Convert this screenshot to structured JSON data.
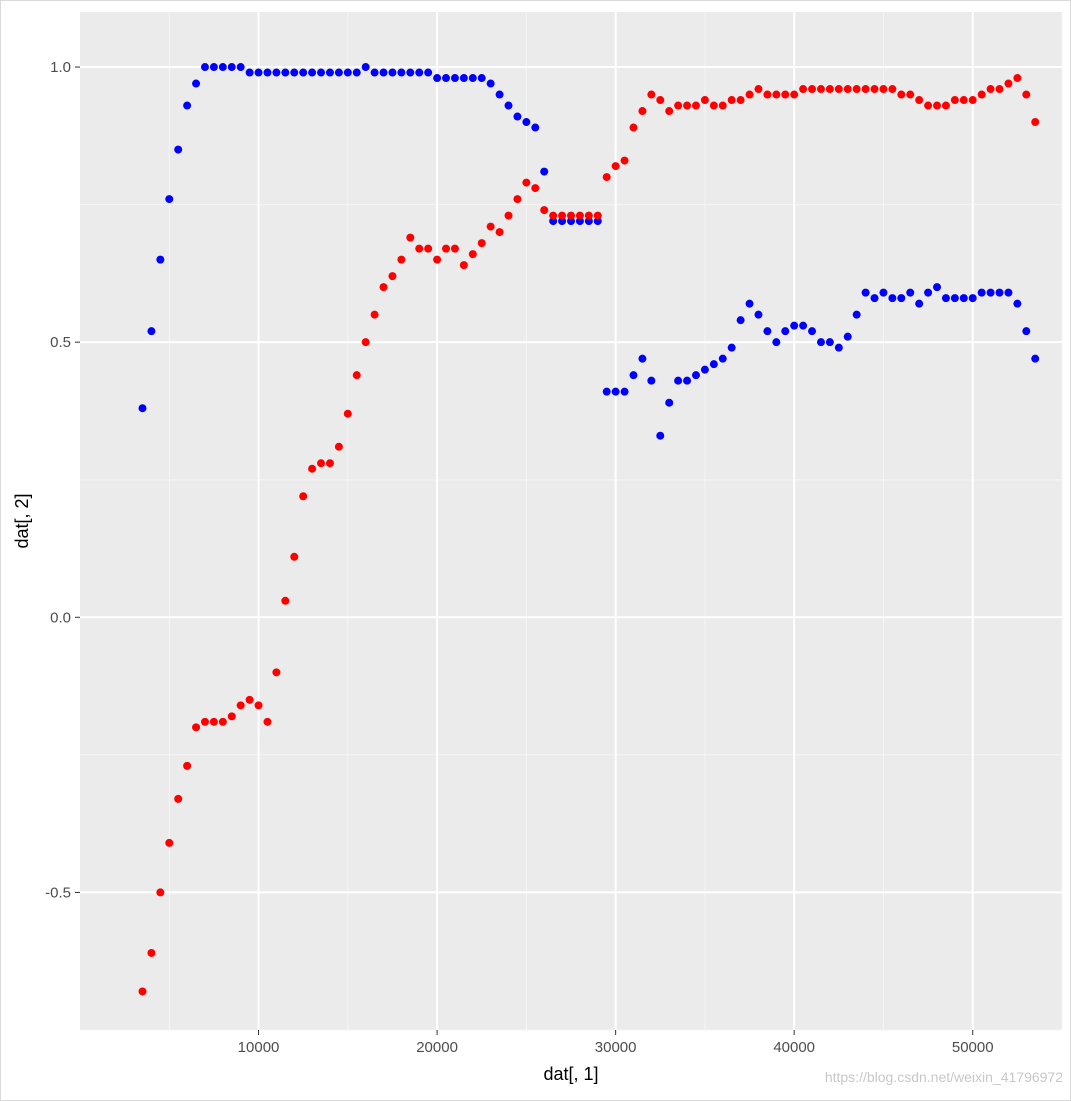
{
  "chart_data": {
    "type": "scatter",
    "xlabel": "dat[, 1]",
    "ylabel": "dat[, 2]",
    "xlim": [
      0,
      55000
    ],
    "ylim": [
      -0.75,
      1.1
    ],
    "x_ticks": [
      10000,
      20000,
      30000,
      40000,
      50000
    ],
    "x_tick_labels": [
      "10000",
      "20000",
      "30000",
      "40000",
      "50000"
    ],
    "y_ticks": [
      -0.5,
      0.0,
      0.5,
      1.0
    ],
    "y_tick_labels": [
      "-0.5",
      "0.0",
      "0.5",
      "1.0"
    ],
    "grid": true,
    "legend": "none",
    "series": [
      {
        "color": "#0000ff",
        "points": [
          [
            3500,
            0.38
          ],
          [
            4000,
            0.52
          ],
          [
            4500,
            0.65
          ],
          [
            5000,
            0.76
          ],
          [
            5500,
            0.85
          ],
          [
            6000,
            0.93
          ],
          [
            6500,
            0.97
          ],
          [
            7000,
            1.0
          ],
          [
            7500,
            1.0
          ],
          [
            8000,
            1.0
          ],
          [
            8500,
            1.0
          ],
          [
            9000,
            1.0
          ],
          [
            9500,
            0.99
          ],
          [
            10000,
            0.99
          ],
          [
            10500,
            0.99
          ],
          [
            11000,
            0.99
          ],
          [
            11500,
            0.99
          ],
          [
            12000,
            0.99
          ],
          [
            12500,
            0.99
          ],
          [
            13000,
            0.99
          ],
          [
            13500,
            0.99
          ],
          [
            14000,
            0.99
          ],
          [
            14500,
            0.99
          ],
          [
            15000,
            0.99
          ],
          [
            15500,
            0.99
          ],
          [
            16000,
            1.0
          ],
          [
            16500,
            0.99
          ],
          [
            17000,
            0.99
          ],
          [
            17500,
            0.99
          ],
          [
            18000,
            0.99
          ],
          [
            18500,
            0.99
          ],
          [
            19000,
            0.99
          ],
          [
            19500,
            0.99
          ],
          [
            20000,
            0.98
          ],
          [
            20500,
            0.98
          ],
          [
            21000,
            0.98
          ],
          [
            21500,
            0.98
          ],
          [
            22000,
            0.98
          ],
          [
            22500,
            0.98
          ],
          [
            23000,
            0.97
          ],
          [
            23500,
            0.95
          ],
          [
            24000,
            0.93
          ],
          [
            24500,
            0.91
          ],
          [
            25000,
            0.9
          ],
          [
            25500,
            0.89
          ],
          [
            26000,
            0.81
          ],
          [
            26500,
            0.72
          ],
          [
            27000,
            0.72
          ],
          [
            27500,
            0.72
          ],
          [
            28000,
            0.72
          ],
          [
            28500,
            0.72
          ],
          [
            29000,
            0.72
          ],
          [
            29500,
            0.41
          ],
          [
            30000,
            0.41
          ],
          [
            30500,
            0.41
          ],
          [
            31000,
            0.44
          ],
          [
            31500,
            0.47
          ],
          [
            32000,
            0.43
          ],
          [
            32500,
            0.33
          ],
          [
            33000,
            0.39
          ],
          [
            33500,
            0.43
          ],
          [
            34000,
            0.43
          ],
          [
            34500,
            0.44
          ],
          [
            35000,
            0.45
          ],
          [
            35500,
            0.46
          ],
          [
            36000,
            0.47
          ],
          [
            36500,
            0.49
          ],
          [
            37000,
            0.54
          ],
          [
            37500,
            0.57
          ],
          [
            38000,
            0.55
          ],
          [
            38500,
            0.52
          ],
          [
            39000,
            0.5
          ],
          [
            39500,
            0.52
          ],
          [
            40000,
            0.53
          ],
          [
            40500,
            0.53
          ],
          [
            41000,
            0.52
          ],
          [
            41500,
            0.5
          ],
          [
            42000,
            0.5
          ],
          [
            42500,
            0.49
          ],
          [
            43000,
            0.51
          ],
          [
            43500,
            0.55
          ],
          [
            44000,
            0.59
          ],
          [
            44500,
            0.58
          ],
          [
            45000,
            0.59
          ],
          [
            45500,
            0.58
          ],
          [
            46000,
            0.58
          ],
          [
            46500,
            0.59
          ],
          [
            47000,
            0.57
          ],
          [
            47500,
            0.59
          ],
          [
            48000,
            0.6
          ],
          [
            48500,
            0.58
          ],
          [
            49000,
            0.58
          ],
          [
            49500,
            0.58
          ],
          [
            50000,
            0.58
          ],
          [
            50500,
            0.59
          ],
          [
            51000,
            0.59
          ],
          [
            51500,
            0.59
          ],
          [
            52000,
            0.59
          ],
          [
            52500,
            0.57
          ],
          [
            53000,
            0.52
          ],
          [
            53500,
            0.47
          ]
        ]
      },
      {
        "color": "#ff0000",
        "points": [
          [
            3500,
            -0.68
          ],
          [
            4000,
            -0.61
          ],
          [
            4500,
            -0.5
          ],
          [
            5000,
            -0.41
          ],
          [
            5500,
            -0.33
          ],
          [
            6000,
            -0.27
          ],
          [
            6500,
            -0.2
          ],
          [
            7000,
            -0.19
          ],
          [
            7500,
            -0.19
          ],
          [
            8000,
            -0.19
          ],
          [
            8500,
            -0.18
          ],
          [
            9000,
            -0.16
          ],
          [
            9500,
            -0.15
          ],
          [
            10000,
            -0.16
          ],
          [
            10500,
            -0.19
          ],
          [
            11000,
            -0.1
          ],
          [
            11500,
            0.03
          ],
          [
            12000,
            0.11
          ],
          [
            12500,
            0.22
          ],
          [
            13000,
            0.27
          ],
          [
            13500,
            0.28
          ],
          [
            14000,
            0.28
          ],
          [
            14500,
            0.31
          ],
          [
            15000,
            0.37
          ],
          [
            15500,
            0.44
          ],
          [
            16000,
            0.5
          ],
          [
            16500,
            0.55
          ],
          [
            17000,
            0.6
          ],
          [
            17500,
            0.62
          ],
          [
            18000,
            0.65
          ],
          [
            18500,
            0.69
          ],
          [
            19000,
            0.67
          ],
          [
            19500,
            0.67
          ],
          [
            20000,
            0.65
          ],
          [
            20500,
            0.67
          ],
          [
            21000,
            0.67
          ],
          [
            21500,
            0.64
          ],
          [
            22000,
            0.66
          ],
          [
            22500,
            0.68
          ],
          [
            23000,
            0.71
          ],
          [
            23500,
            0.7
          ],
          [
            24000,
            0.73
          ],
          [
            24500,
            0.76
          ],
          [
            25000,
            0.79
          ],
          [
            25500,
            0.78
          ],
          [
            26000,
            0.74
          ],
          [
            26500,
            0.73
          ],
          [
            27000,
            0.73
          ],
          [
            27500,
            0.73
          ],
          [
            28000,
            0.73
          ],
          [
            28500,
            0.73
          ],
          [
            29000,
            0.73
          ],
          [
            29500,
            0.8
          ],
          [
            30000,
            0.82
          ],
          [
            30500,
            0.83
          ],
          [
            31000,
            0.89
          ],
          [
            31500,
            0.92
          ],
          [
            32000,
            0.95
          ],
          [
            32500,
            0.94
          ],
          [
            33000,
            0.92
          ],
          [
            33500,
            0.93
          ],
          [
            34000,
            0.93
          ],
          [
            34500,
            0.93
          ],
          [
            35000,
            0.94
          ],
          [
            35500,
            0.93
          ],
          [
            36000,
            0.93
          ],
          [
            36500,
            0.94
          ],
          [
            37000,
            0.94
          ],
          [
            37500,
            0.95
          ],
          [
            38000,
            0.96
          ],
          [
            38500,
            0.95
          ],
          [
            39000,
            0.95
          ],
          [
            39500,
            0.95
          ],
          [
            40000,
            0.95
          ],
          [
            40500,
            0.96
          ],
          [
            41000,
            0.96
          ],
          [
            41500,
            0.96
          ],
          [
            42000,
            0.96
          ],
          [
            42500,
            0.96
          ],
          [
            43000,
            0.96
          ],
          [
            43500,
            0.96
          ],
          [
            44000,
            0.96
          ],
          [
            44500,
            0.96
          ],
          [
            45000,
            0.96
          ],
          [
            45500,
            0.96
          ],
          [
            46000,
            0.95
          ],
          [
            46500,
            0.95
          ],
          [
            47000,
            0.94
          ],
          [
            47500,
            0.93
          ],
          [
            48000,
            0.93
          ],
          [
            48500,
            0.93
          ],
          [
            49000,
            0.94
          ],
          [
            49500,
            0.94
          ],
          [
            50000,
            0.94
          ],
          [
            50500,
            0.95
          ],
          [
            51000,
            0.96
          ],
          [
            51500,
            0.96
          ],
          [
            52000,
            0.97
          ],
          [
            52500,
            0.98
          ],
          [
            53000,
            0.95
          ],
          [
            53500,
            0.9
          ]
        ]
      }
    ]
  },
  "watermark": "https://blog.csdn.net/weixin_41796972"
}
